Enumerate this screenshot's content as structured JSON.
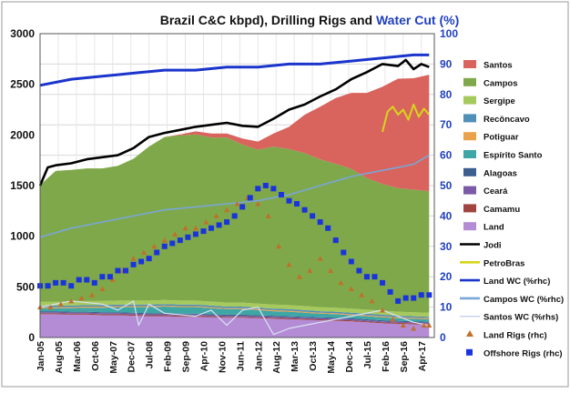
{
  "chart_data": {
    "type": "area",
    "title_parts": [
      {
        "text": "Brazil C&C kbpd), Drilling Rigs and ",
        "color": "#111111"
      },
      {
        "text": "Water Cut (%)",
        "color": "#1f3fbf"
      }
    ],
    "x_tick_labels": [
      "Jan-05",
      "Aug-05",
      "Mar-06",
      "Oct-06",
      "May-07",
      "Dec-07",
      "Jul-08",
      "Feb-09",
      "Sep-09",
      "Apr-10",
      "Nov-10",
      "Jun-11",
      "Jan-12",
      "Aug-12",
      "Mar-13",
      "Oct-13",
      "May-14",
      "Dec-14",
      "Jul-15",
      "Feb-16",
      "Sep-16",
      "Apr-17"
    ],
    "x_domain": [
      "Jan-05",
      "Sep-17"
    ],
    "y_left": {
      "min": 0,
      "max": 3000,
      "ticks": [
        "0",
        "500",
        "1000",
        "1500",
        "2000",
        "2500",
        "3000"
      ]
    },
    "y_right": {
      "min": 0,
      "max": 100,
      "ticks": [
        "0",
        "10",
        "20",
        "30",
        "40",
        "50",
        "60",
        "70",
        "80",
        "90",
        "100"
      ]
    },
    "grid": true,
    "legend_position": "right",
    "legend": [
      {
        "label": "Santos",
        "color": "#d9635d",
        "kind": "area"
      },
      {
        "label": "Campos",
        "color": "#7fa84a",
        "kind": "area"
      },
      {
        "label": "Sergipe",
        "color": "#a6c95c",
        "kind": "area"
      },
      {
        "label": "Recôncavo",
        "color": "#4f8fb8",
        "kind": "area"
      },
      {
        "label": "Potiguar",
        "color": "#e9a14a",
        "kind": "area"
      },
      {
        "label": "Espírito Santo",
        "color": "#3fa6a6",
        "kind": "area"
      },
      {
        "label": "Alagoas",
        "color": "#3b5f8f",
        "kind": "area"
      },
      {
        "label": "Ceará",
        "color": "#7b5aa6",
        "kind": "area"
      },
      {
        "label": "Camamu",
        "color": "#a0443f",
        "kind": "area"
      },
      {
        "label": "Land",
        "color": "#b48cd6",
        "kind": "area"
      },
      {
        "label": "Jodi",
        "color": "#000000",
        "kind": "line"
      },
      {
        "label": "PetroBras",
        "color": "#d6d61a",
        "kind": "line"
      },
      {
        "label": "Land WC (%rhc)",
        "color": "#1a34cc",
        "kind": "line"
      },
      {
        "label": "Campos WC (%rhc)",
        "color": "#7aa6d8",
        "kind": "line"
      },
      {
        "label": "Santos WC (%rhs)",
        "color": "#c8d4ec",
        "kind": "line"
      },
      {
        "label": "Land Rigs (rhc)",
        "color": "#c0702a",
        "kind": "triangle"
      },
      {
        "label": "Offshore Rigs (rhc)",
        "color": "#1a34dd",
        "kind": "square"
      }
    ],
    "series_area": {
      "t": [
        0,
        6,
        12,
        18,
        24,
        30,
        36,
        42,
        48,
        54,
        60,
        66,
        72,
        78,
        84,
        90,
        96,
        102,
        108,
        114,
        120,
        126,
        132,
        138,
        144,
        150
      ],
      "Land": [
        230,
        230,
        225,
        225,
        220,
        220,
        215,
        210,
        210,
        205,
        205,
        200,
        195,
        195,
        190,
        185,
        180,
        175,
        170,
        165,
        160,
        150,
        140,
        135,
        130,
        125
      ],
      "Camamu": [
        10,
        10,
        10,
        10,
        10,
        10,
        10,
        10,
        10,
        10,
        10,
        10,
        10,
        10,
        10,
        10,
        10,
        10,
        10,
        10,
        10,
        10,
        10,
        10,
        10,
        10
      ],
      "Ceara": [
        10,
        10,
        10,
        10,
        10,
        10,
        10,
        10,
        10,
        10,
        10,
        10,
        10,
        10,
        10,
        10,
        10,
        10,
        10,
        10,
        10,
        10,
        10,
        10,
        10,
        10
      ],
      "Alagoas": [
        10,
        10,
        10,
        10,
        10,
        10,
        10,
        10,
        10,
        10,
        10,
        10,
        10,
        10,
        10,
        10,
        10,
        10,
        10,
        10,
        10,
        10,
        10,
        10,
        10,
        10
      ],
      "Espirito Santo": [
        30,
        30,
        35,
        40,
        45,
        50,
        55,
        60,
        65,
        65,
        65,
        60,
        55,
        55,
        50,
        45,
        45,
        40,
        35,
        35,
        30,
        30,
        30,
        25,
        25,
        25
      ],
      "Potiguar": [
        10,
        10,
        10,
        10,
        10,
        10,
        10,
        10,
        10,
        10,
        10,
        10,
        10,
        10,
        10,
        10,
        10,
        10,
        10,
        10,
        10,
        10,
        10,
        10,
        10,
        10
      ],
      "Reconcavo": [
        15,
        15,
        15,
        15,
        15,
        15,
        15,
        15,
        15,
        15,
        15,
        15,
        15,
        15,
        15,
        15,
        15,
        15,
        15,
        15,
        15,
        15,
        15,
        15,
        15,
        15
      ],
      "Sergipe": [
        40,
        40,
        40,
        40,
        40,
        40,
        40,
        40,
        40,
        40,
        40,
        40,
        40,
        40,
        40,
        40,
        40,
        40,
        40,
        40,
        40,
        40,
        40,
        40,
        40,
        40
      ],
      "Campos": [
        1150,
        1290,
        1300,
        1310,
        1310,
        1330,
        1400,
        1520,
        1610,
        1630,
        1640,
        1620,
        1630,
        1560,
        1520,
        1560,
        1540,
        1510,
        1460,
        1420,
        1380,
        1300,
        1250,
        1220,
        1210,
        1200
      ],
      "Santos": [
        0,
        0,
        0,
        0,
        0,
        0,
        0,
        0,
        0,
        10,
        30,
        40,
        40,
        60,
        80,
        130,
        220,
        380,
        520,
        650,
        750,
        840,
        960,
        1080,
        1100,
        1150
      ]
    },
    "series_lines": {
      "Jodi": {
        "t": [
          0,
          3,
          6,
          12,
          18,
          24,
          30,
          36,
          42,
          48,
          54,
          60,
          66,
          72,
          78,
          84,
          90,
          96,
          102,
          108,
          114,
          120,
          126,
          132,
          138,
          141,
          144,
          147,
          150
        ],
        "values": [
          1500,
          1680,
          1700,
          1720,
          1760,
          1780,
          1800,
          1870,
          1980,
          2020,
          2050,
          2080,
          2100,
          2120,
          2090,
          2080,
          2160,
          2250,
          2300,
          2380,
          2450,
          2550,
          2620,
          2700,
          2680,
          2740,
          2650,
          2700,
          2670
        ]
      },
      "PetroBras": {
        "t": [
          132,
          134,
          136,
          138,
          140,
          142,
          144,
          146,
          148,
          150
        ],
        "values": [
          2030,
          2230,
          2280,
          2200,
          2250,
          2150,
          2300,
          2180,
          2260,
          2200
        ]
      },
      "Land WC (%rhc)": {
        "t": [
          0,
          12,
          24,
          36,
          48,
          60,
          72,
          84,
          96,
          108,
          120,
          132,
          144,
          150
        ],
        "values": [
          83,
          85,
          86,
          87,
          88,
          88,
          89,
          89,
          90,
          90,
          91,
          92,
          93,
          93
        ]
      },
      "Campos WC (%rhc)": {
        "t": [
          0,
          12,
          24,
          36,
          48,
          60,
          72,
          84,
          96,
          108,
          120,
          132,
          144,
          150
        ],
        "values": [
          33,
          36,
          38,
          40,
          42,
          43,
          44,
          45,
          47,
          50,
          53,
          55,
          57,
          60
        ]
      },
      "Santos WC (%rhs)": {
        "t": [
          0,
          12,
          24,
          30,
          36,
          38,
          42,
          48,
          60,
          66,
          72,
          78,
          84,
          90,
          96,
          102,
          108,
          120,
          132,
          144,
          150
        ],
        "values": [
          10,
          12,
          11,
          9,
          12,
          4,
          11,
          8,
          7,
          9,
          4,
          9,
          10,
          1,
          3,
          4,
          5,
          7,
          9,
          5,
          4
        ]
      }
    },
    "land_rigs_rhc": {
      "t": [
        0,
        4,
        8,
        12,
        16,
        20,
        24,
        28,
        32,
        36,
        40,
        44,
        48,
        52,
        56,
        60,
        64,
        68,
        72,
        76,
        80,
        84,
        88,
        92,
        96,
        100,
        104,
        108,
        112,
        116,
        120,
        124,
        128,
        132,
        136,
        140,
        144,
        148,
        150
      ],
      "values": [
        10,
        10,
        11,
        12,
        13,
        14,
        16,
        19,
        22,
        26,
        28,
        30,
        32,
        34,
        36,
        36,
        38,
        40,
        42,
        44,
        46,
        44,
        40,
        30,
        24,
        20,
        22,
        26,
        22,
        18,
        16,
        14,
        12,
        9,
        6,
        4,
        3,
        4,
        4
      ]
    },
    "offshore_rigs_rhc": {
      "t": [
        0,
        3,
        6,
        9,
        12,
        15,
        18,
        21,
        24,
        27,
        30,
        33,
        36,
        39,
        42,
        45,
        48,
        51,
        54,
        57,
        60,
        63,
        66,
        69,
        72,
        75,
        78,
        81,
        84,
        87,
        90,
        93,
        96,
        99,
        102,
        105,
        108,
        111,
        114,
        117,
        120,
        123,
        126,
        129,
        132,
        135,
        138,
        141,
        144,
        147,
        150
      ],
      "values": [
        17,
        17,
        18,
        18,
        17,
        19,
        19,
        18,
        20,
        20,
        22,
        22,
        24,
        25,
        26,
        28,
        30,
        31,
        32,
        33,
        34,
        35,
        36,
        37,
        38,
        40,
        43,
        46,
        49,
        50,
        49,
        47,
        45,
        44,
        42,
        40,
        38,
        36,
        32,
        28,
        25,
        22,
        20,
        20,
        18,
        15,
        12,
        13,
        13,
        14,
        14
      ]
    }
  }
}
